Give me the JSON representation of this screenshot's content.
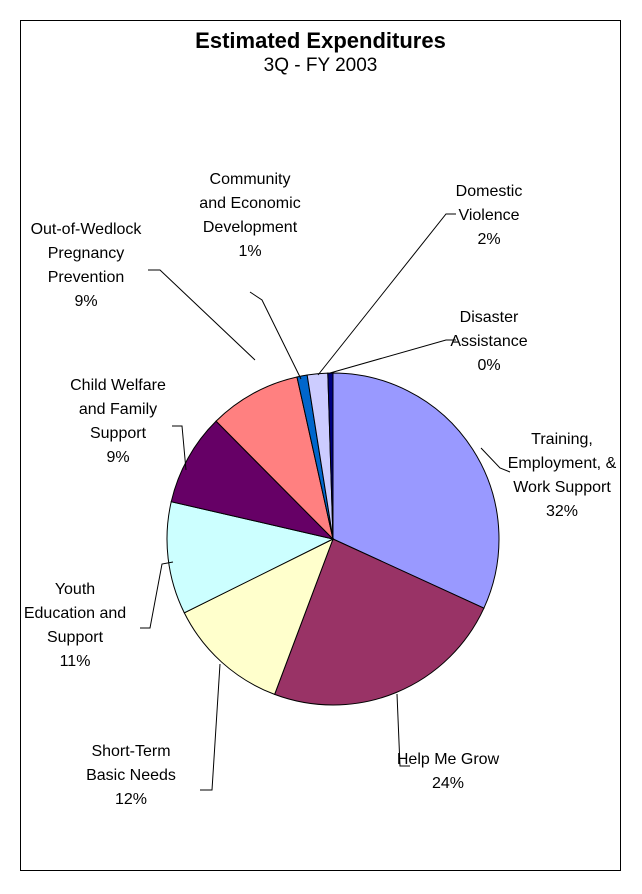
{
  "chart_data": {
    "type": "pie",
    "title": "Estimated Expenditures",
    "subtitle": "3Q - FY 2003",
    "slices": [
      {
        "label_lines": [
          "Training,",
          "Employment, &",
          "Work Support",
          "32%"
        ],
        "value": 32,
        "color": "#9999ff"
      },
      {
        "label_lines": [
          "Help Me Grow",
          "24%"
        ],
        "value": 24,
        "color": "#993366"
      },
      {
        "label_lines": [
          "Short-Term",
          "Basic Needs",
          "12%"
        ],
        "value": 12,
        "color": "#ffffcc"
      },
      {
        "label_lines": [
          "Youth",
          "Education and",
          "Support",
          "11%"
        ],
        "value": 11,
        "color": "#ccffff"
      },
      {
        "label_lines": [
          "Child Welfare",
          "and Family",
          "Support",
          "9%"
        ],
        "value": 9,
        "color": "#660066"
      },
      {
        "label_lines": [
          "Out-of-Wedlock",
          "Pregnancy",
          "Prevention",
          "9%"
        ],
        "value": 9,
        "color": "#ff8080"
      },
      {
        "label_lines": [
          "Community",
          "and Economic",
          "Development",
          "1%"
        ],
        "value": 1,
        "color": "#0066cc"
      },
      {
        "label_lines": [
          "Domestic",
          "Violence",
          "2%"
        ],
        "value": 2,
        "color": "#ccccff"
      },
      {
        "label_lines": [
          "Disaster",
          "Assistance",
          "0%"
        ],
        "value": 0.5,
        "color": "#000080"
      }
    ]
  }
}
